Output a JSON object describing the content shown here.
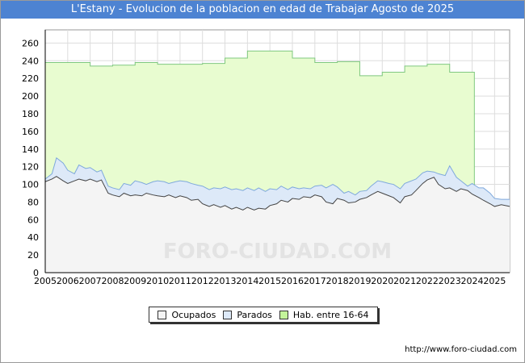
{
  "header": {
    "title": "L'Estany - Evolucion de la poblacion en edad de Trabajar Agosto de 2025"
  },
  "footer": {
    "source": "http://www.foro-ciudad.com"
  },
  "watermark": "FORO-CIUDAD.COM",
  "colors": {
    "title_bg": "#4d83d2",
    "hab_fill": "#e8fcd0",
    "hab_line": "#7fc87f",
    "parados_fill": "#dde9f8",
    "parados_line": "#7fa9dc",
    "ocupados_fill": "#f4f4f4",
    "ocupados_line": "#444444",
    "grid": "#dddddd"
  },
  "chart_data": {
    "type": "area",
    "title": "L'Estany - Evolucion de la poblacion en edad de Trabajar Agosto de 2025",
    "xlabel": "",
    "ylabel": "",
    "xlim": [
      2005,
      2025.67
    ],
    "ylim": [
      0,
      275
    ],
    "yticks": [
      0,
      20,
      40,
      60,
      80,
      100,
      120,
      140,
      160,
      180,
      200,
      220,
      240,
      260
    ],
    "xticks": [
      "2005",
      "2006",
      "2007",
      "2008",
      "2009",
      "2010",
      "2011",
      "2012",
      "2013",
      "2014",
      "2015",
      "2016",
      "2017",
      "2018",
      "2019",
      "2020",
      "2021",
      "2022",
      "2023",
      "2024",
      "2025"
    ],
    "grid": true,
    "legend_position": "bottom-center",
    "legend": [
      "Ocupados",
      "Parados",
      "Hab. entre 16-64"
    ],
    "series": [
      {
        "name": "Hab. entre 16-64",
        "kind": "step",
        "x": [
          2005,
          2006,
          2007,
          2008,
          2009,
          2010,
          2011,
          2012,
          2013,
          2014,
          2015,
          2016,
          2017,
          2018,
          2019,
          2020,
          2021,
          2022,
          2023,
          2024.1
        ],
        "values": [
          238,
          238,
          234,
          235,
          238,
          236,
          236,
          237,
          243,
          251,
          251,
          243,
          238,
          239,
          223,
          227,
          234,
          236,
          227,
          null
        ]
      },
      {
        "name": "Parados",
        "kind": "line",
        "x": [
          2005,
          2005.3,
          2005.5,
          2005.8,
          2006,
          2006.3,
          2006.5,
          2006.8,
          2007,
          2007.3,
          2007.5,
          2007.8,
          2008,
          2008.3,
          2008.5,
          2008.8,
          2009,
          2009.3,
          2009.5,
          2009.8,
          2010,
          2010.3,
          2010.5,
          2010.8,
          2011,
          2011.3,
          2011.5,
          2011.8,
          2012,
          2012.3,
          2012.5,
          2012.8,
          2013,
          2013.3,
          2013.5,
          2013.8,
          2014,
          2014.3,
          2014.5,
          2014.8,
          2015,
          2015.3,
          2015.5,
          2015.8,
          2016,
          2016.3,
          2016.5,
          2016.8,
          2017,
          2017.3,
          2017.5,
          2017.8,
          2018,
          2018.3,
          2018.5,
          2018.8,
          2019,
          2019.3,
          2019.5,
          2019.8,
          2020,
          2020.3,
          2020.5,
          2020.8,
          2021,
          2021.3,
          2021.5,
          2021.8,
          2022,
          2022.3,
          2022.5,
          2022.8,
          2023,
          2023.3,
          2023.5,
          2023.8,
          2024,
          2024.3,
          2024.5,
          2024.8,
          2025,
          2025.3,
          2025.67
        ],
        "values": [
          106,
          112,
          130,
          124,
          116,
          112,
          122,
          118,
          119,
          114,
          116,
          98,
          96,
          94,
          101,
          99,
          104,
          102,
          100,
          103,
          104,
          103,
          101,
          103,
          104,
          103,
          101,
          99,
          98,
          94,
          96,
          95,
          97,
          94,
          95,
          93,
          96,
          93,
          96,
          92,
          95,
          94,
          98,
          94,
          97,
          95,
          96,
          95,
          98,
          99,
          96,
          100,
          97,
          90,
          92,
          88,
          92,
          93,
          98,
          104,
          103,
          101,
          100,
          95,
          101,
          104,
          106,
          113,
          115,
          114,
          112,
          110,
          121,
          108,
          104,
          98,
          101,
          96,
          96,
          90,
          84,
          83,
          83
        ]
      },
      {
        "name": "Ocupados",
        "kind": "line",
        "x": [
          2005,
          2005.3,
          2005.5,
          2005.8,
          2006,
          2006.3,
          2006.5,
          2006.8,
          2007,
          2007.3,
          2007.5,
          2007.8,
          2008,
          2008.3,
          2008.5,
          2008.8,
          2009,
          2009.3,
          2009.5,
          2009.8,
          2010,
          2010.3,
          2010.5,
          2010.8,
          2011,
          2011.3,
          2011.5,
          2011.8,
          2012,
          2012.3,
          2012.5,
          2012.8,
          2013,
          2013.3,
          2013.5,
          2013.8,
          2014,
          2014.3,
          2014.5,
          2014.8,
          2015,
          2015.3,
          2015.5,
          2015.8,
          2016,
          2016.3,
          2016.5,
          2016.8,
          2017,
          2017.3,
          2017.5,
          2017.8,
          2018,
          2018.3,
          2018.5,
          2018.8,
          2019,
          2019.3,
          2019.5,
          2019.8,
          2020,
          2020.3,
          2020.5,
          2020.8,
          2021,
          2021.3,
          2021.5,
          2021.8,
          2022,
          2022.3,
          2022.5,
          2022.8,
          2023,
          2023.3,
          2023.5,
          2023.8,
          2024,
          2024.3,
          2024.5,
          2024.8,
          2025,
          2025.3,
          2025.67
        ],
        "values": [
          103,
          106,
          109,
          104,
          101,
          104,
          106,
          104,
          106,
          103,
          105,
          90,
          88,
          86,
          90,
          87,
          88,
          87,
          90,
          88,
          87,
          86,
          88,
          85,
          87,
          85,
          82,
          83,
          78,
          75,
          77,
          74,
          76,
          72,
          74,
          71,
          74,
          71,
          73,
          72,
          76,
          78,
          82,
          80,
          84,
          83,
          86,
          85,
          88,
          86,
          80,
          78,
          84,
          82,
          79,
          80,
          83,
          85,
          88,
          92,
          90,
          87,
          85,
          79,
          86,
          88,
          93,
          101,
          105,
          108,
          100,
          95,
          96,
          92,
          95,
          93,
          89,
          85,
          82,
          78,
          75,
          77,
          75
        ]
      }
    ]
  }
}
